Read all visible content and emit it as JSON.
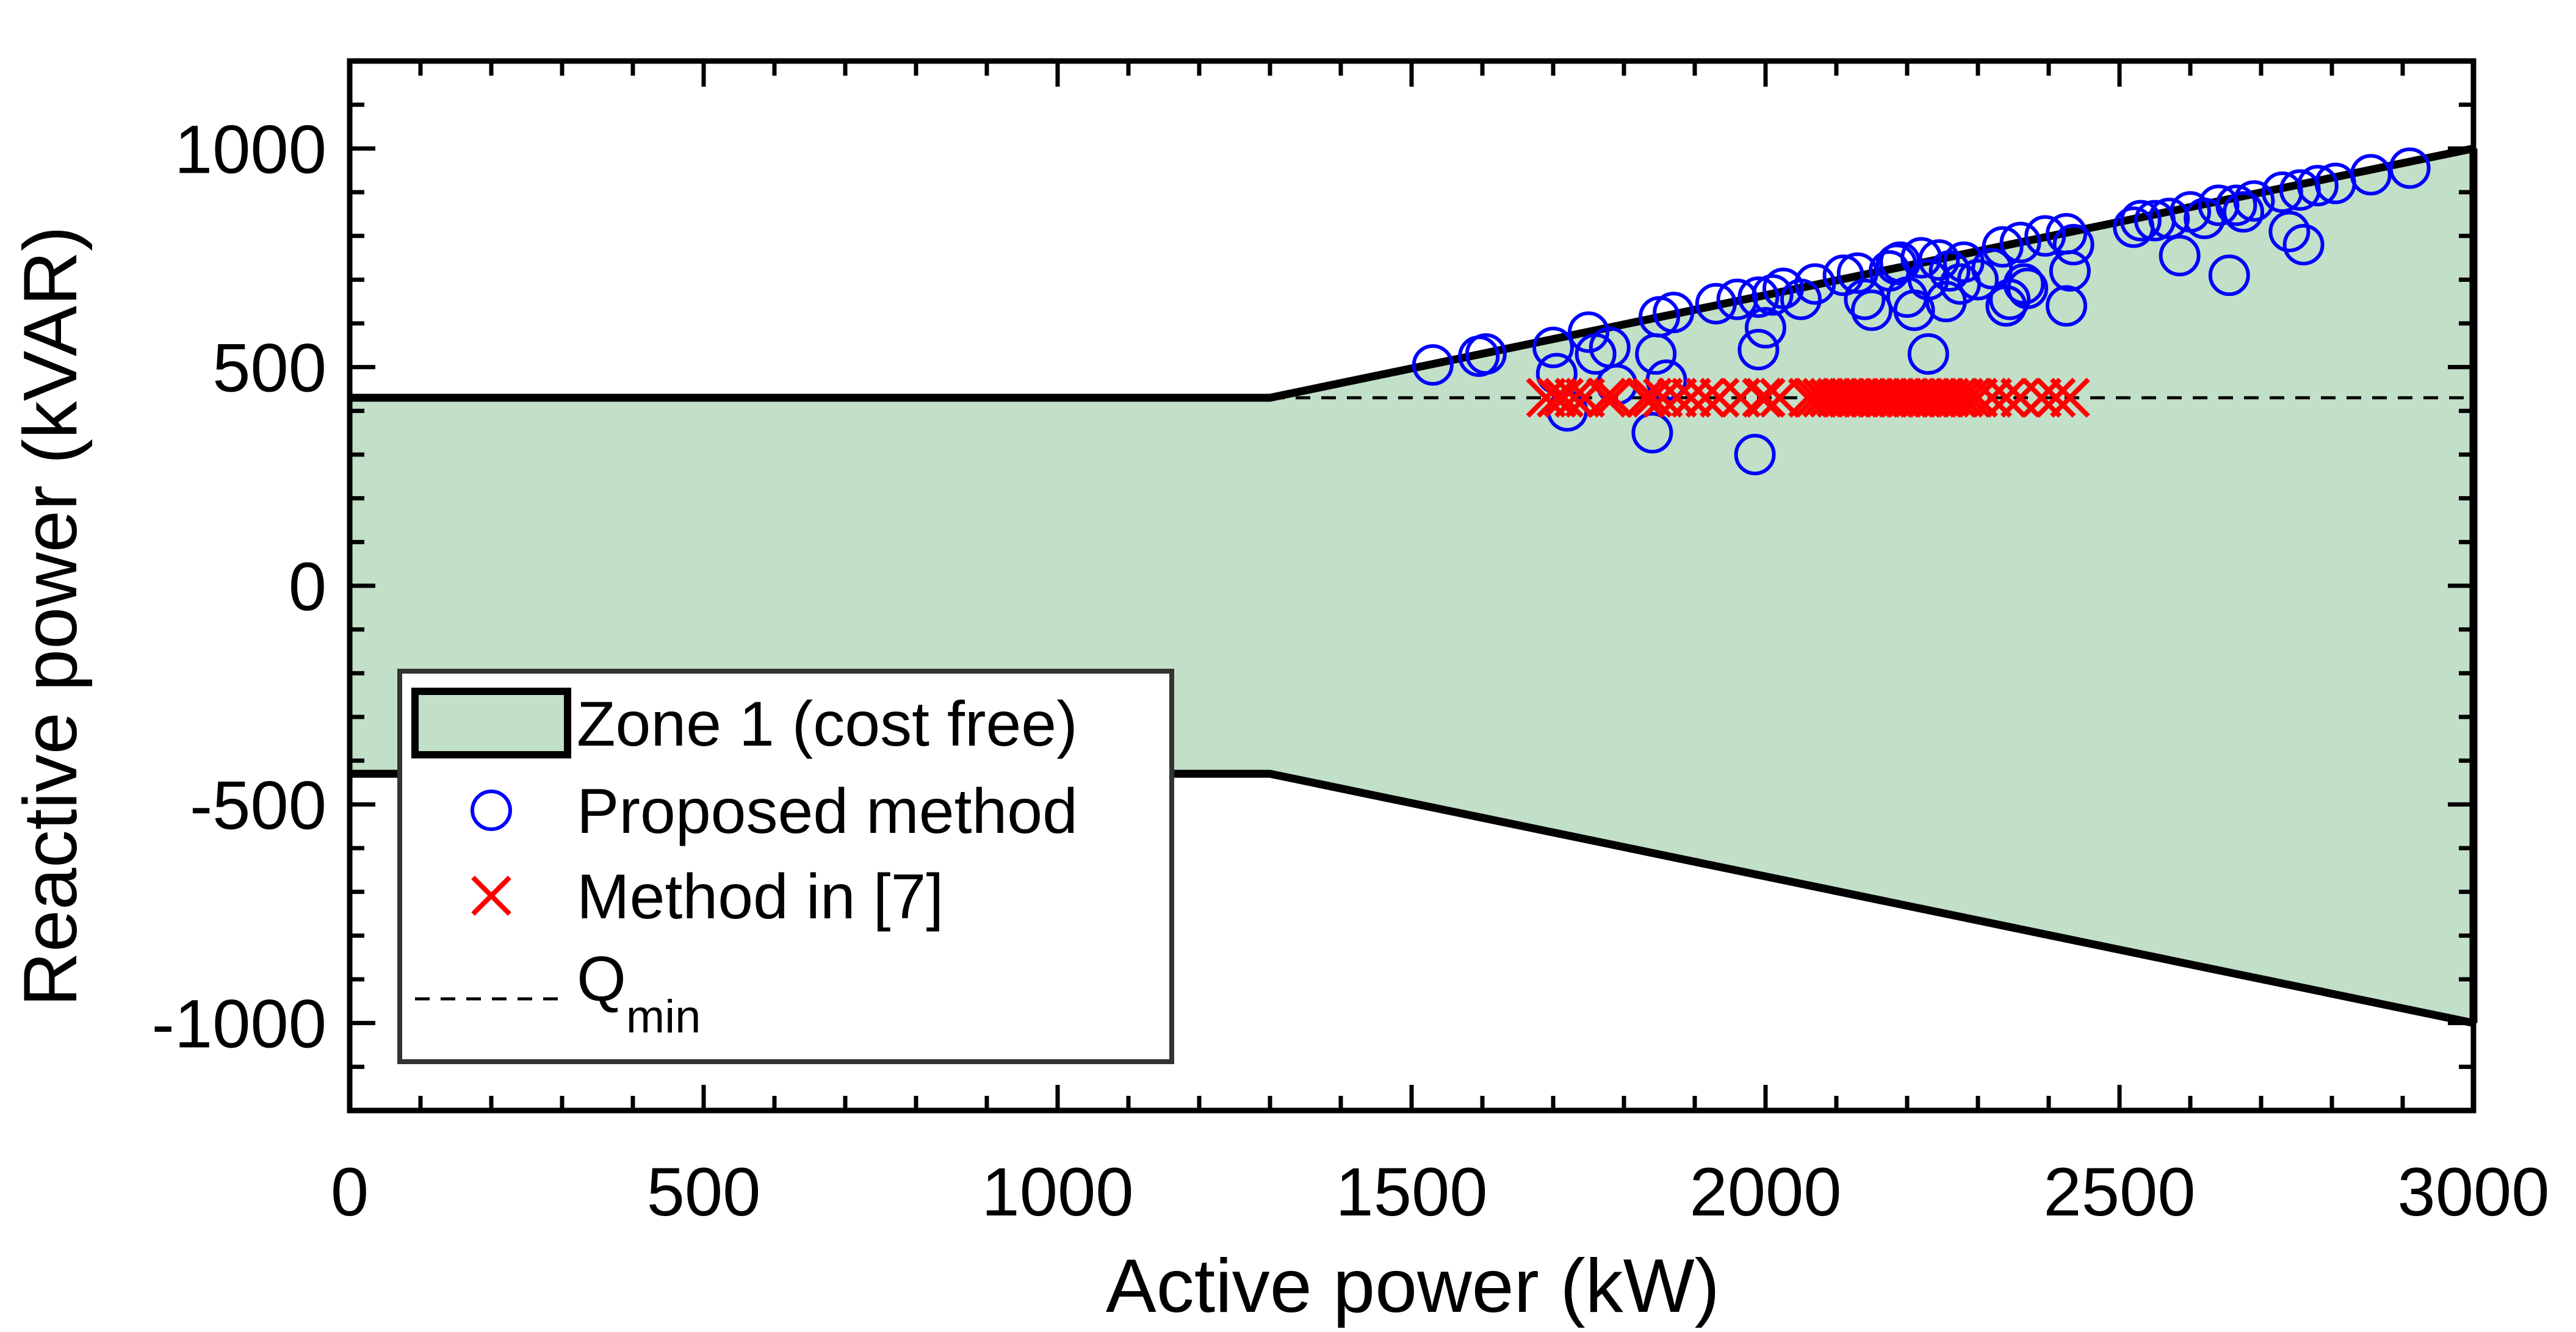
{
  "chart_data": {
    "type": "scatter",
    "xlabel": "Active power (kW)",
    "ylabel": "Reactive power (kVAR)",
    "xlim": [
      0,
      3000
    ],
    "ylim": [
      -1200,
      1200
    ],
    "xticks": [
      0,
      500,
      1000,
      1500,
      2000,
      2500,
      3000
    ],
    "yticks": [
      1000,
      500,
      0,
      -500,
      -1000
    ],
    "xtick_labels": [
      "0",
      "500",
      "1000",
      "1500",
      "2000",
      "2500",
      "3000"
    ],
    "ytick_labels": [
      "1000",
      "500",
      "0",
      "-500",
      "-1000"
    ],
    "grid": false,
    "legend_position": "lower-left",
    "colors": {
      "zone": "#c2dfc8",
      "zone_edge": "#000000",
      "proposed": "#0000ff",
      "method7": "#ff0000",
      "qmin": "#000000"
    },
    "legend": {
      "zone": "Zone 1 (cost free)",
      "proposed": "Proposed method",
      "method7": "Method in [7]",
      "qmin_main": "Q",
      "qmin_sub": "min"
    },
    "zone1": {
      "upper": [
        [
          0,
          430
        ],
        [
          1300,
          430
        ],
        [
          3000,
          1000
        ]
      ],
      "lower": [
        [
          0,
          -430
        ],
        [
          1300,
          -430
        ],
        [
          3000,
          -1000
        ]
      ]
    },
    "qmin": 430,
    "series": [
      {
        "name": "Proposed method",
        "marker": "circle",
        "points": [
          [
            1530,
            505
          ],
          [
            1595,
            525
          ],
          [
            1605,
            530
          ],
          [
            1700,
            545
          ],
          [
            1705,
            485
          ],
          [
            1720,
            400
          ],
          [
            1750,
            580
          ],
          [
            1760,
            530
          ],
          [
            1780,
            545
          ],
          [
            1790,
            460
          ],
          [
            1840,
            350
          ],
          [
            1845,
            530
          ],
          [
            1850,
            615
          ],
          [
            1860,
            470
          ],
          [
            1870,
            625
          ],
          [
            1930,
            645
          ],
          [
            1960,
            655
          ],
          [
            1985,
            300
          ],
          [
            1990,
            540
          ],
          [
            1990,
            660
          ],
          [
            2000,
            590
          ],
          [
            2010,
            665
          ],
          [
            2025,
            680
          ],
          [
            2050,
            655
          ],
          [
            2070,
            690
          ],
          [
            2110,
            710
          ],
          [
            2130,
            715
          ],
          [
            2140,
            655
          ],
          [
            2150,
            630
          ],
          [
            2175,
            720
          ],
          [
            2185,
            735
          ],
          [
            2190,
            740
          ],
          [
            2200,
            660
          ],
          [
            2210,
            630
          ],
          [
            2220,
            750
          ],
          [
            2230,
            530
          ],
          [
            2230,
            700
          ],
          [
            2245,
            745
          ],
          [
            2255,
            650
          ],
          [
            2260,
            720
          ],
          [
            2275,
            690
          ],
          [
            2280,
            740
          ],
          [
            2300,
            700
          ],
          [
            2320,
            725
          ],
          [
            2335,
            775
          ],
          [
            2340,
            640
          ],
          [
            2345,
            655
          ],
          [
            2360,
            785
          ],
          [
            2365,
            690
          ],
          [
            2370,
            680
          ],
          [
            2395,
            800
          ],
          [
            2425,
            640
          ],
          [
            2425,
            805
          ],
          [
            2430,
            720
          ],
          [
            2435,
            780
          ],
          [
            2520,
            820
          ],
          [
            2530,
            835
          ],
          [
            2550,
            835
          ],
          [
            2570,
            840
          ],
          [
            2585,
            755
          ],
          [
            2600,
            855
          ],
          [
            2620,
            840
          ],
          [
            2640,
            870
          ],
          [
            2655,
            710
          ],
          [
            2665,
            870
          ],
          [
            2675,
            855
          ],
          [
            2690,
            880
          ],
          [
            2730,
            900
          ],
          [
            2740,
            810
          ],
          [
            2755,
            905
          ],
          [
            2760,
            780
          ],
          [
            2780,
            915
          ],
          [
            2805,
            920
          ],
          [
            2855,
            940
          ],
          [
            2910,
            955
          ]
        ]
      },
      {
        "name": "Method in [7]",
        "marker": "x",
        "points": [
          [
            1690,
            430
          ],
          [
            1705,
            430
          ],
          [
            1715,
            430
          ],
          [
            1730,
            430
          ],
          [
            1745,
            430
          ],
          [
            1775,
            430
          ],
          [
            1785,
            430
          ],
          [
            1830,
            430
          ],
          [
            1840,
            430
          ],
          [
            1855,
            430
          ],
          [
            1875,
            430
          ],
          [
            1895,
            430
          ],
          [
            1915,
            430
          ],
          [
            1935,
            430
          ],
          [
            1965,
            430
          ],
          [
            1995,
            430
          ],
          [
            2000,
            430
          ],
          [
            2020,
            430
          ],
          [
            2060,
            430
          ],
          [
            2070,
            430
          ],
          [
            2080,
            430
          ],
          [
            2090,
            430
          ],
          [
            2100,
            430
          ],
          [
            2110,
            430
          ],
          [
            2120,
            430
          ],
          [
            2130,
            430
          ],
          [
            2140,
            430
          ],
          [
            2150,
            430
          ],
          [
            2160,
            430
          ],
          [
            2170,
            430
          ],
          [
            2180,
            430
          ],
          [
            2190,
            430
          ],
          [
            2200,
            430
          ],
          [
            2210,
            430
          ],
          [
            2220,
            430
          ],
          [
            2230,
            430
          ],
          [
            2240,
            430
          ],
          [
            2250,
            430
          ],
          [
            2260,
            430
          ],
          [
            2270,
            430
          ],
          [
            2280,
            430
          ],
          [
            2290,
            430
          ],
          [
            2300,
            430
          ],
          [
            2320,
            430
          ],
          [
            2340,
            430
          ],
          [
            2360,
            430
          ],
          [
            2390,
            430
          ],
          [
            2410,
            430
          ],
          [
            2430,
            430
          ]
        ]
      }
    ]
  }
}
